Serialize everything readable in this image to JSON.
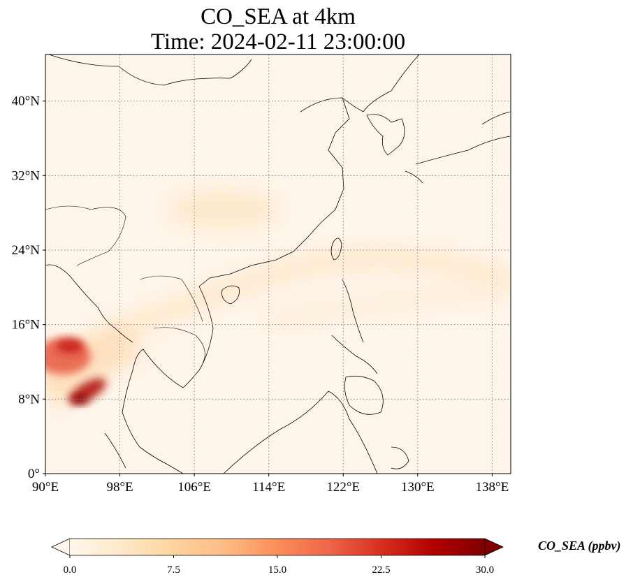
{
  "figure": {
    "title_line1": "CO_SEA at 4km",
    "title_line2": "Time: 2024-02-11 23:00:00"
  },
  "map": {
    "projection": "PlateCarree",
    "lon_range": [
      90,
      140
    ],
    "lat_range": [
      0,
      45
    ],
    "gridlines": "dotted gray",
    "lon_ticks": [
      {
        "value": 90,
        "label": "90°E"
      },
      {
        "value": 98,
        "label": "98°E"
      },
      {
        "value": 106,
        "label": "106°E"
      },
      {
        "value": 114,
        "label": "114°E"
      },
      {
        "value": 122,
        "label": "122°E"
      },
      {
        "value": 130,
        "label": "130°E"
      },
      {
        "value": 138,
        "label": "138°E"
      }
    ],
    "lat_ticks": [
      {
        "value": 0,
        "label": "0°"
      },
      {
        "value": 8,
        "label": "8°N"
      },
      {
        "value": 16,
        "label": "16°N"
      },
      {
        "value": 24,
        "label": "24°N"
      },
      {
        "value": 32,
        "label": "32°N"
      },
      {
        "value": 40,
        "label": "40°N"
      }
    ],
    "field_hotspots": [
      {
        "lon": 92.5,
        "lat": 12.8,
        "value": 24
      },
      {
        "lon": 95.0,
        "lat": 8.6,
        "value": 30
      },
      {
        "lon": 93.0,
        "lat": 7.6,
        "value": 28
      },
      {
        "lon": 91.0,
        "lat": 10.0,
        "value": 11
      },
      {
        "lon": 110.0,
        "lat": 29.5,
        "value": 4
      },
      {
        "lon": 118.0,
        "lat": 16.5,
        "value": 4
      }
    ],
    "background_color": "#fef5ea",
    "coastline_color": "#000000"
  },
  "colorbar": {
    "colormap": "OrRd",
    "range": [
      0.0,
      30.0
    ],
    "extend": "both",
    "ticks": [
      "0.0",
      "7.5",
      "15.0",
      "22.5",
      "30.0"
    ],
    "label": "CO_SEA (ppbv)",
    "colors": [
      "#fff7ec",
      "#fee8c8",
      "#fdd49e",
      "#fdbb84",
      "#fc8d59",
      "#ef6548",
      "#d7301f",
      "#b30000",
      "#7f0000"
    ]
  }
}
